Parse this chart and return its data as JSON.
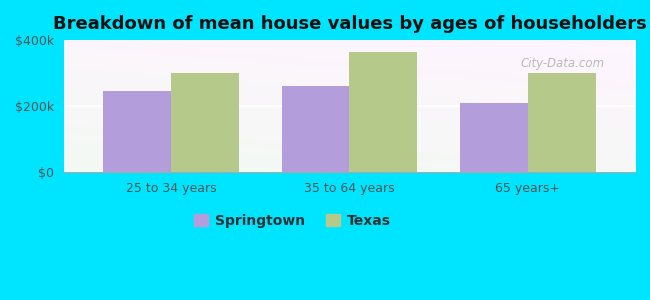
{
  "title": "Breakdown of mean house values by ages of householders",
  "categories": [
    "25 to 34 years",
    "35 to 64 years",
    "65 years+"
  ],
  "springtown_values": [
    245000,
    260000,
    210000
  ],
  "texas_values": [
    300000,
    365000,
    300000
  ],
  "springtown_color": "#b39ddb",
  "texas_color": "#b5c98a",
  "ylim": [
    0,
    400000
  ],
  "ytick_labels": [
    "$0",
    "$200k",
    "$400k"
  ],
  "ytick_values": [
    0,
    200000,
    400000
  ],
  "background_color": "#00e5ff",
  "legend_springtown": "Springtown",
  "legend_texas": "Texas",
  "title_fontsize": 13,
  "tick_fontsize": 9,
  "legend_fontsize": 10,
  "bar_width": 0.38,
  "watermark": "City-Data.com"
}
